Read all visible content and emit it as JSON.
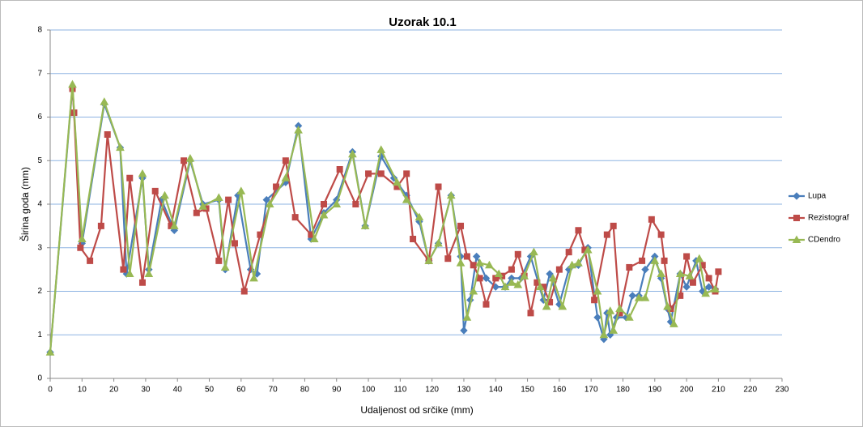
{
  "chart_data": {
    "type": "line",
    "title": "Uzorak 10.1",
    "x_label": "Udaljenost od srčike (mm)",
    "y_label": "Širina goda (mm)",
    "xlim": [
      0,
      230
    ],
    "xticks": [
      0,
      10,
      20,
      30,
      40,
      50,
      60,
      70,
      80,
      90,
      100,
      110,
      120,
      130,
      140,
      150,
      160,
      170,
      180,
      190,
      200,
      210,
      220,
      230
    ],
    "ylim": [
      0,
      8
    ],
    "yticks": [
      0,
      1,
      2,
      3,
      4,
      5,
      6,
      7,
      8
    ],
    "grid": true,
    "legend": "right",
    "series": [
      {
        "name": "Lupa",
        "color": "#4a7ebb",
        "marker": "diamond",
        "x": [
          0,
          7,
          10,
          17,
          22,
          24,
          29,
          31,
          35,
          39,
          44,
          48,
          53,
          55,
          59,
          63,
          65,
          68,
          74,
          78,
          82,
          86,
          90,
          95,
          99,
          104,
          108,
          112,
          116,
          119,
          122,
          126,
          129,
          130,
          132,
          134,
          137,
          140,
          143,
          145,
          148,
          151,
          155,
          157,
          160,
          163,
          166,
          169,
          172,
          174,
          175,
          176,
          178,
          181,
          183,
          185,
          187,
          190,
          192,
          194,
          195,
          198,
          200,
          203,
          205,
          207,
          209
        ],
        "values": [
          0.6,
          6.7,
          3.1,
          6.3,
          5.3,
          2.4,
          4.6,
          2.5,
          4.1,
          3.4,
          5,
          4,
          4.1,
          2.5,
          4.2,
          2.5,
          2.4,
          4.1,
          4.5,
          5.8,
          3.2,
          3.8,
          4.1,
          5.2,
          3.5,
          5.1,
          4.6,
          4.2,
          3.6,
          2.7,
          3.1,
          4.2,
          2.8,
          1.1,
          1.8,
          2.8,
          2.3,
          2.1,
          2.1,
          2.3,
          2.3,
          2.8,
          1.8,
          2.4,
          1.7,
          2.5,
          2.6,
          3,
          1.4,
          0.9,
          1.5,
          1,
          1.4,
          1.4,
          1.9,
          1.9,
          2.5,
          2.8,
          2.3,
          1.6,
          1.3,
          2.4,
          2.1,
          2.7,
          2,
          2.1,
          2.05
        ]
      },
      {
        "name": "Rezistograf",
        "color": "#be4b48",
        "marker": "square",
        "x": [
          7,
          7.5,
          9.5,
          12.5,
          16,
          18,
          23,
          25,
          29,
          33,
          38,
          42,
          46,
          49,
          53,
          56,
          58,
          61,
          66,
          71,
          74,
          77,
          82,
          86,
          91,
          96,
          100,
          104,
          109,
          112,
          114,
          119,
          122,
          125,
          129,
          131,
          133,
          135,
          137,
          140,
          142,
          145,
          147,
          149,
          151,
          153,
          155,
          157,
          160,
          163,
          166,
          168,
          171,
          175,
          177,
          179,
          182,
          186,
          189,
          192,
          193,
          195,
          198,
          200,
          202,
          205,
          207,
          209,
          210
        ],
        "values": [
          6.65,
          6.1,
          3,
          2.7,
          3.5,
          5.6,
          2.5,
          4.6,
          2.2,
          4.3,
          3.5,
          5,
          3.8,
          3.9,
          2.7,
          4.1,
          3.1,
          2,
          3.3,
          4.4,
          5,
          3.7,
          3.3,
          4,
          4.8,
          4,
          4.7,
          4.7,
          4.4,
          4.7,
          3.2,
          2.7,
          4.4,
          2.75,
          3.5,
          2.8,
          2.6,
          2.3,
          1.7,
          2.3,
          2.35,
          2.5,
          2.85,
          2.35,
          1.5,
          2.2,
          2.1,
          1.75,
          2.5,
          2.9,
          3.4,
          2.95,
          1.8,
          3.3,
          3.5,
          1.5,
          2.55,
          2.7,
          3.65,
          3.3,
          2.7,
          1.6,
          1.9,
          2.8,
          2.2,
          2.6,
          2.3,
          2,
          2.45
        ]
      },
      {
        "name": "CDendro",
        "color": "#98b954",
        "marker": "triangle",
        "x": [
          0,
          7,
          10,
          17,
          22,
          25,
          29,
          31,
          36,
          39,
          44,
          48,
          53,
          55,
          60,
          64,
          69,
          74,
          78,
          83,
          86,
          90,
          95,
          99,
          104,
          109,
          112,
          116,
          119,
          122,
          126,
          129,
          131,
          133,
          135,
          138,
          141,
          143,
          145,
          147,
          149,
          152,
          154,
          156,
          158,
          161,
          164,
          166,
          169,
          172,
          174,
          176,
          177,
          179,
          182,
          185,
          187,
          190,
          192,
          194,
          196,
          198,
          201,
          204,
          206,
          209
        ],
        "values": [
          0.6,
          6.75,
          3.2,
          6.35,
          5.3,
          2.4,
          4.7,
          2.4,
          4.2,
          3.5,
          5.05,
          3.95,
          4.15,
          2.55,
          4.3,
          2.3,
          4,
          4.6,
          5.7,
          3.2,
          3.75,
          4,
          5.15,
          3.5,
          5.25,
          4.5,
          4.1,
          3.7,
          2.7,
          3.1,
          4.2,
          2.65,
          1.4,
          2,
          2.65,
          2.6,
          2.4,
          2.1,
          2.2,
          2.15,
          2.35,
          2.9,
          2.1,
          1.65,
          2.3,
          1.65,
          2.6,
          2.65,
          2.95,
          2,
          1,
          1.55,
          1.1,
          1.6,
          1.4,
          1.85,
          1.85,
          2.7,
          2.4,
          1.65,
          1.25,
          2.4,
          2.35,
          2.75,
          1.95,
          2.05
        ]
      }
    ]
  }
}
